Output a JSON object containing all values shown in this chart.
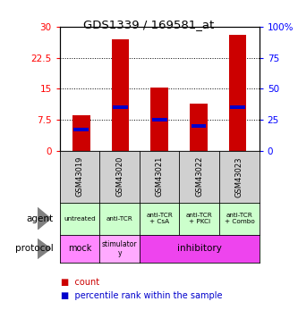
{
  "title": "GDS1339 / 169581_at",
  "samples": [
    "GSM43019",
    "GSM43020",
    "GSM43021",
    "GSM43022",
    "GSM43023"
  ],
  "count_values": [
    8.5,
    27.0,
    15.2,
    11.5,
    28.0
  ],
  "percentile_values": [
    17,
    35,
    25,
    20,
    35
  ],
  "ylim_left": [
    0,
    30
  ],
  "ylim_right": [
    0,
    100
  ],
  "yticks_left": [
    0,
    7.5,
    15,
    22.5,
    30
  ],
  "yticks_right": [
    0,
    25,
    50,
    75,
    100
  ],
  "ytick_right_labels": [
    "0",
    "25",
    "50",
    "75",
    "100%"
  ],
  "agent_labels": [
    "untreated",
    "anti-TCR",
    "anti-TCR\n+ CsA",
    "anti-TCR\n+ PKCi",
    "anti-TCR\n+ Combo"
  ],
  "bar_color": "#cc0000",
  "percentile_color": "#0000cc",
  "agent_bg": "#ccffcc",
  "protocol_mock_bg": "#ff88ff",
  "protocol_stim_bg": "#ffaaff",
  "protocol_inhib_bg": "#ee44ee",
  "sample_bg": "#d0d0d0",
  "bar_width": 0.45,
  "legend_count_color": "#cc0000",
  "legend_pct_color": "#0000cc"
}
